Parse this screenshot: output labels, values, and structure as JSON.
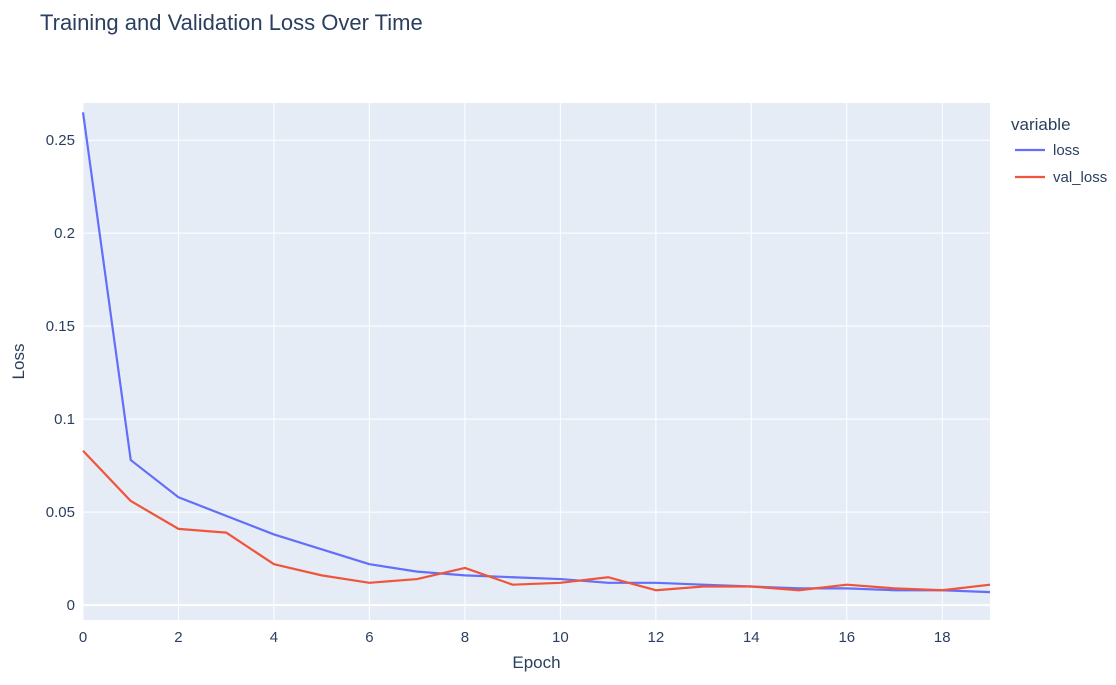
{
  "chart_data": {
    "type": "line",
    "title": "Training and Validation Loss Over Time",
    "xlabel": "Epoch",
    "ylabel": "Loss",
    "x": [
      0,
      1,
      2,
      3,
      4,
      5,
      6,
      7,
      8,
      9,
      10,
      11,
      12,
      13,
      14,
      15,
      16,
      17,
      18,
      19
    ],
    "xlim": [
      0,
      19
    ],
    "ylim": [
      -0.008,
      0.27
    ],
    "x_ticks": [
      0,
      2,
      4,
      6,
      8,
      10,
      12,
      14,
      16,
      18
    ],
    "y_ticks": [
      0,
      0.05,
      0.1,
      0.15,
      0.2,
      0.25
    ],
    "y_tick_labels": [
      "0",
      "0.05",
      "0.1",
      "0.15",
      "0.2",
      "0.25"
    ],
    "grid": true,
    "legend": {
      "title": "variable",
      "position": "right"
    },
    "series": [
      {
        "name": "loss",
        "color": "#636efa",
        "values": [
          0.265,
          0.078,
          0.058,
          0.048,
          0.038,
          0.03,
          0.022,
          0.018,
          0.016,
          0.015,
          0.014,
          0.012,
          0.012,
          0.011,
          0.01,
          0.009,
          0.009,
          0.008,
          0.008,
          0.007
        ]
      },
      {
        "name": "val_loss",
        "color": "#ef553b",
        "values": [
          0.083,
          0.056,
          0.041,
          0.039,
          0.022,
          0.016,
          0.012,
          0.014,
          0.02,
          0.011,
          0.012,
          0.015,
          0.008,
          0.01,
          0.01,
          0.008,
          0.011,
          0.009,
          0.008,
          0.011
        ]
      }
    ]
  }
}
